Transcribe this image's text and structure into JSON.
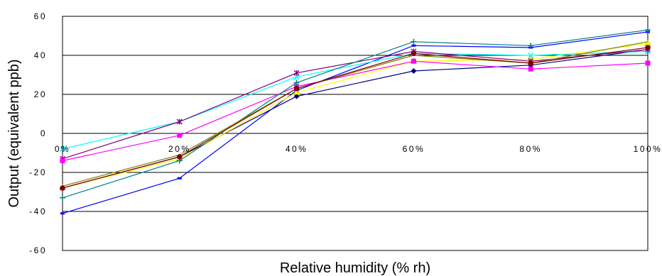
{
  "chart_data": {
    "type": "line",
    "xlabel": "Relative humidity (% rh)",
    "ylabel": "Output (equivalent ppb)",
    "x": [
      0,
      20,
      40,
      60,
      80,
      100
    ],
    "x_tick_labels": [
      "0%",
      "20%",
      "40%",
      "60%",
      "80%",
      "100%"
    ],
    "ylim": [
      -60,
      60
    ],
    "y_ticks": [
      -60,
      -40,
      -20,
      0,
      20,
      40,
      60
    ],
    "y_tick_labels": [
      "-60",
      "-40",
      "-20",
      "0",
      "20",
      "40",
      "60"
    ],
    "grid": "horizontal",
    "legend": "none",
    "series": [
      {
        "color": "#000080",
        "marker": "diamond",
        "values": [
          -28,
          -12,
          19,
          32,
          35,
          43
        ]
      },
      {
        "color": "#0000ff",
        "marker": "dash",
        "values": [
          -41,
          -23,
          22,
          45,
          44,
          52
        ]
      },
      {
        "color": "#ffff00",
        "marker": "triangle",
        "values": [
          -28,
          -13,
          21,
          37,
          38,
          46
        ]
      },
      {
        "color": "#00ffff",
        "marker": "x",
        "values": [
          -8,
          6,
          29,
          41,
          40,
          42
        ]
      },
      {
        "color": "#800080",
        "marker": "star",
        "values": [
          -13,
          6,
          31,
          42,
          37,
          43
        ]
      },
      {
        "color": "#ff00ff",
        "marker": "square",
        "values": [
          -14,
          -1,
          24,
          37,
          33,
          36
        ]
      },
      {
        "color": "#008080",
        "marker": "plus",
        "values": [
          -33,
          -14,
          26,
          47,
          45,
          53
        ]
      },
      {
        "color": "#808000",
        "marker": "none",
        "values": [
          -27,
          -11,
          23,
          40,
          36,
          47
        ]
      },
      {
        "color": "#800000",
        "marker": "circle",
        "values": [
          -28,
          -12,
          23,
          41,
          36,
          44
        ]
      }
    ]
  }
}
